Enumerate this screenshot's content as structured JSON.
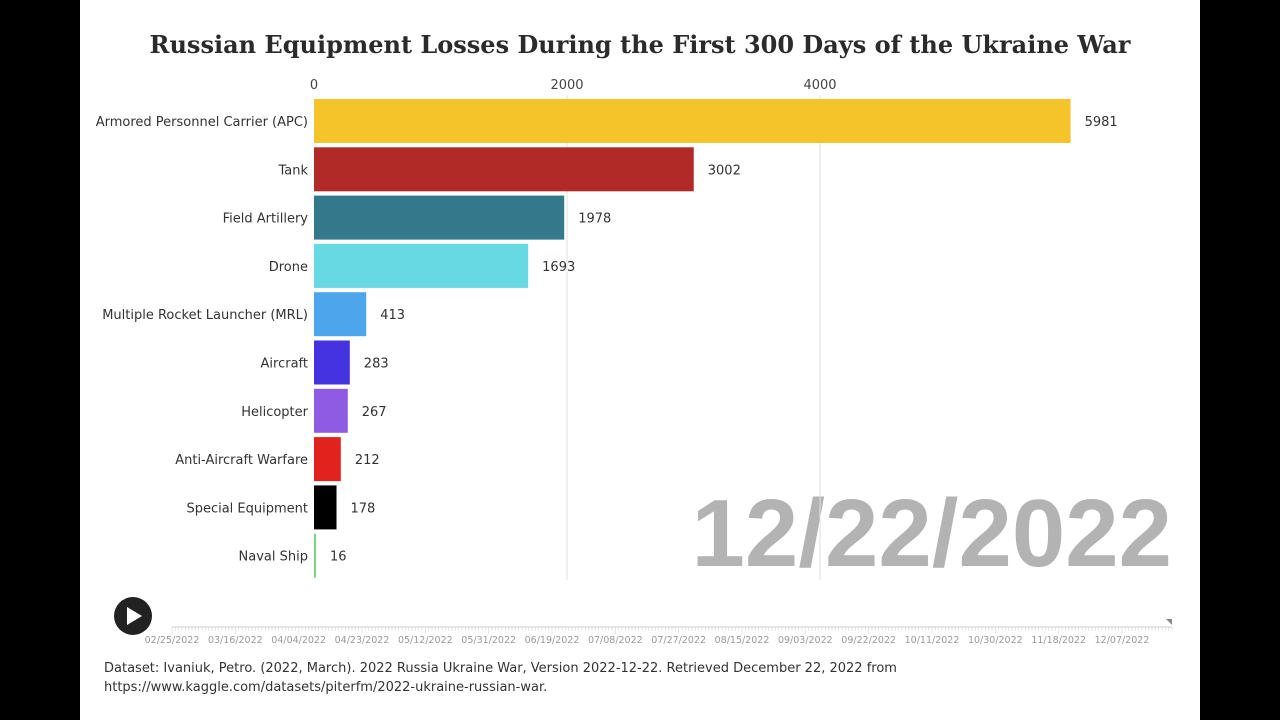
{
  "chart_data": {
    "type": "bar",
    "orientation": "horizontal",
    "title": "Russian Equipment Losses During the First 300 Days of the Ukraine War",
    "categories": [
      "Armored Personnel Carrier (APC)",
      "Tank",
      "Field Artillery",
      "Drone",
      "Multiple Rocket Launcher (MRL)",
      "Aircraft",
      "Helicopter",
      "Anti-Aircraft Warfare",
      "Special Equipment",
      "Naval Ship"
    ],
    "values": [
      5981,
      3002,
      1978,
      1693,
      413,
      283,
      267,
      212,
      178,
      16
    ],
    "colors": [
      "#f4c42a",
      "#b22a27",
      "#33788b",
      "#66d9e3",
      "#4da6eb",
      "#4532e0",
      "#8f5be3",
      "#e2231d",
      "#000000",
      "#7fd37f"
    ],
    "x_ticks": [
      0,
      2000,
      4000
    ],
    "xlim": [
      0,
      6400
    ],
    "axis_position": "top",
    "grid": true,
    "date_label": "12/22/2022"
  },
  "timeline": {
    "play_icon": "play-icon",
    "ticks": [
      "02/25/2022",
      "03/16/2022",
      "04/04/2022",
      "04/23/2022",
      "05/12/2022",
      "05/31/2022",
      "06/19/2022",
      "07/08/2022",
      "07/27/2022",
      "08/15/2022",
      "09/03/2022",
      "09/22/2022",
      "10/11/2022",
      "10/30/2022",
      "11/18/2022",
      "12/07/2022"
    ],
    "progress": 1.0
  },
  "footer": "Dataset: Ivaniuk, Petro. (2022, March). 2022 Russia Ukraine War, Version 2022-12-22. Retrieved December 22, 2022 from https://www.kaggle.com/datasets/piterfm/2022-ukraine-russian-war."
}
